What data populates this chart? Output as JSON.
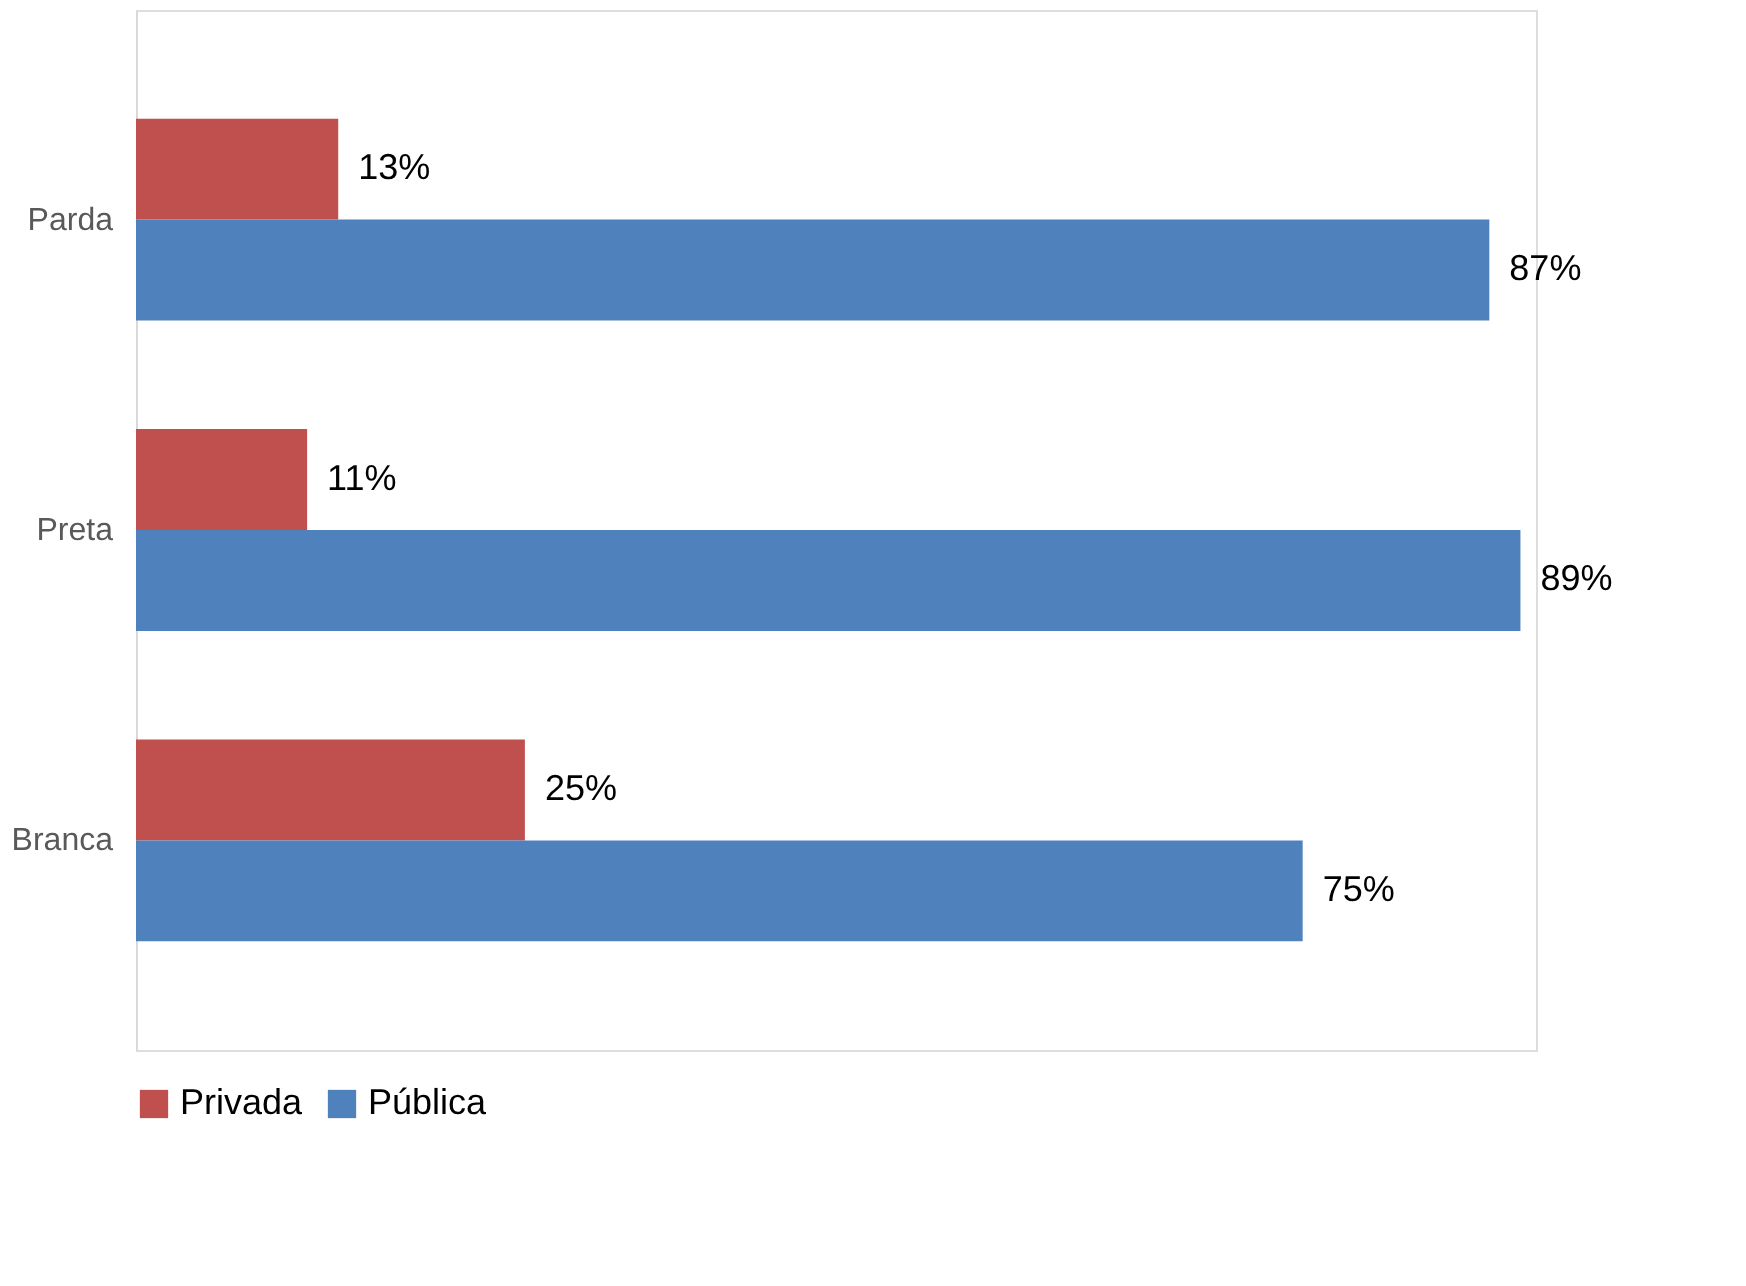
{
  "chart_data": {
    "type": "bar",
    "orientation": "horizontal",
    "categories": [
      "Parda",
      "Preta",
      "Branca"
    ],
    "series": [
      {
        "name": "Privada",
        "color": "#c0504d",
        "values": [
          13,
          11,
          25
        ],
        "value_labels": [
          "13%",
          "11%",
          "25%"
        ]
      },
      {
        "name": "Pública",
        "color": "#4f81bd",
        "values": [
          87,
          89,
          75
        ],
        "value_labels": [
          "87%",
          "89%",
          "75%"
        ]
      }
    ],
    "legend": "bottom",
    "grid": false,
    "tick_labels": "y"
  }
}
